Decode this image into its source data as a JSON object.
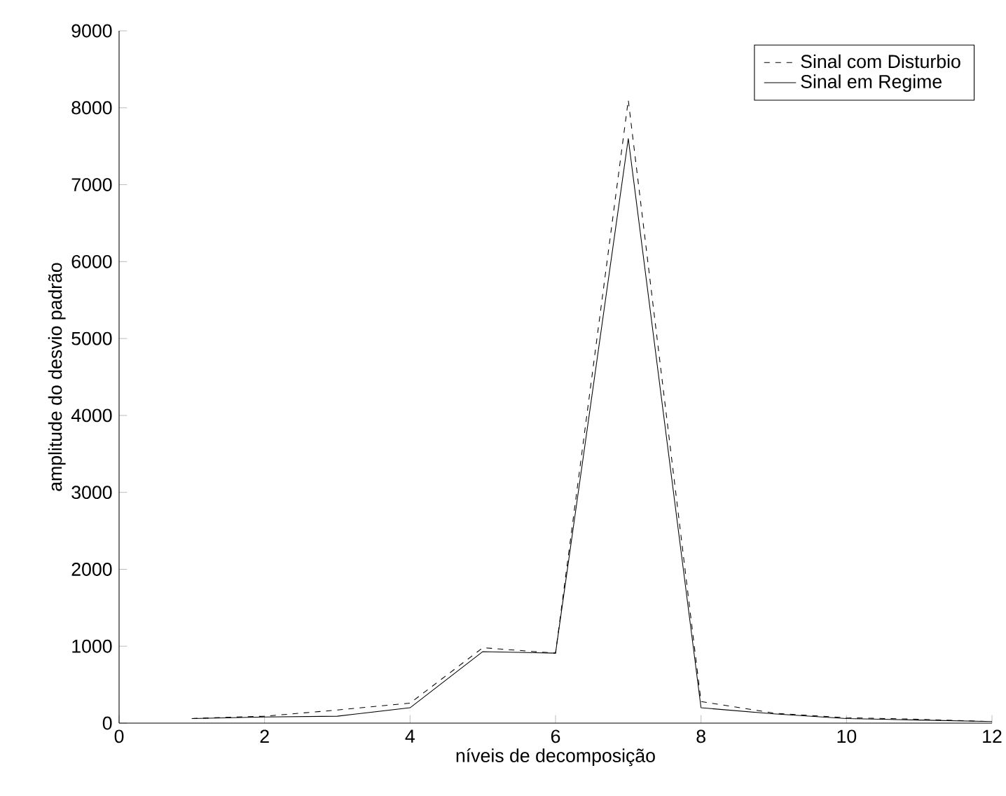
{
  "chart_data": {
    "type": "line",
    "xlabel": "níveis de decomposição",
    "ylabel": "amplitude do desvio padrão",
    "x": [
      1,
      2,
      3,
      4,
      5,
      6,
      7,
      8,
      9,
      10,
      11,
      12
    ],
    "series": [
      {
        "name": "Sinal com Disturbio",
        "color": "#000000",
        "line_style": "dashed",
        "values": [
          60,
          90,
          170,
          260,
          980,
          910,
          8100,
          280,
          130,
          70,
          50,
          20
        ]
      },
      {
        "name": "Sinal em Regime",
        "color": "#000000",
        "line_style": "solid",
        "values": [
          60,
          80,
          90,
          200,
          930,
          910,
          7600,
          200,
          120,
          60,
          40,
          20
        ]
      }
    ],
    "xlim": [
      0,
      12
    ],
    "xticks": [
      0,
      2,
      4,
      6,
      8,
      10,
      12
    ],
    "ylim": [
      0,
      9000
    ],
    "yticks": [
      0,
      1000,
      2000,
      3000,
      4000,
      5000,
      6000,
      7000,
      8000,
      9000
    ],
    "grid": false,
    "legend": "top right",
    "marker": "none"
  }
}
